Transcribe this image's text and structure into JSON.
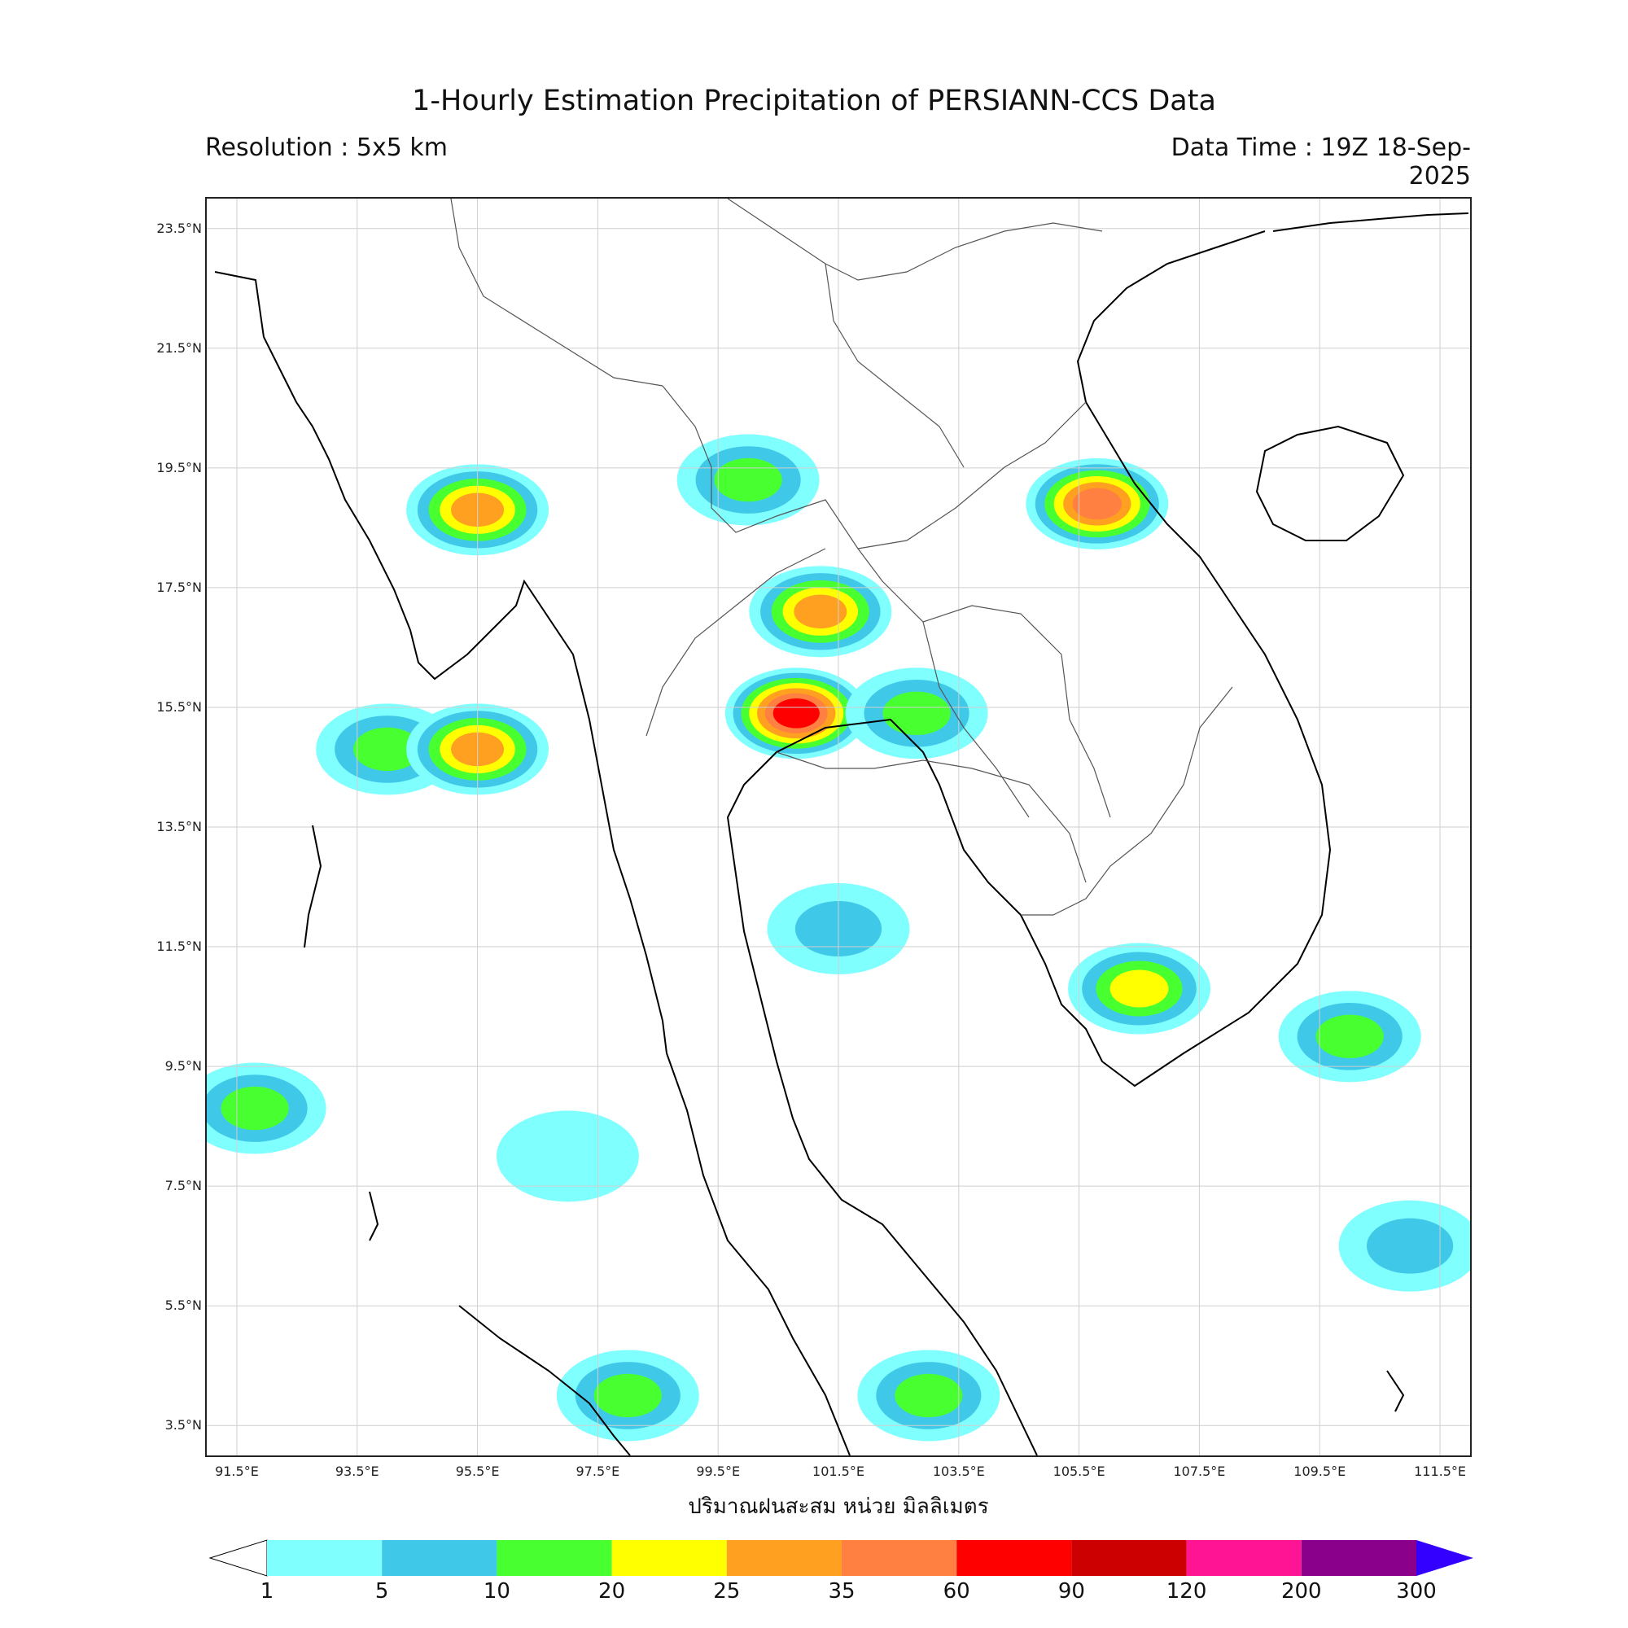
{
  "title": "1-Hourly Estimation Precipitation of PERSIANN-CCS Data",
  "resolution": "Resolution : 5x5 km",
  "data_time": "Data Time : 19Z 18-Sep-2025",
  "unit_label": "ปริมาณฝนสะสม หน่วย มิลลิเมตร",
  "lat_labels": [
    "23.5°N",
    "21.5°N",
    "19.5°N",
    "17.5°N",
    "15.5°N",
    "13.5°N",
    "11.5°N",
    "9.5°N",
    "7.5°N",
    "5.5°N",
    "3.5°N"
  ],
  "lon_labels": [
    "91.5°E",
    "93.5°E",
    "95.5°E",
    "97.5°E",
    "99.5°E",
    "101.5°E",
    "103.5°E",
    "105.5°E",
    "107.5°E",
    "109.5°E",
    "111.5°E"
  ],
  "colorbar": {
    "ticks": [
      "1",
      "5",
      "10",
      "20",
      "25",
      "35",
      "60",
      "90",
      "120",
      "200",
      "300"
    ],
    "colors": [
      "#80ffff",
      "#40c8e8",
      "#48ff30",
      "#ffff00",
      "#ffa020",
      "#ff8040",
      "#ff0000",
      "#cc0000",
      "#ff1493",
      "#8b008b"
    ],
    "over_color": "#3300ff"
  },
  "chart_data": {
    "type": "heatmap",
    "title": "1-Hourly Estimation Precipitation of PERSIANN-CCS Data",
    "xlabel": "",
    "ylabel": "",
    "xlim": [
      91.0,
      112.0
    ],
    "ylim": [
      3.0,
      24.0
    ],
    "levels_mm": [
      1,
      5,
      10,
      20,
      25,
      35,
      60,
      90,
      120,
      200,
      300
    ],
    "rain_cells": [
      {
        "lon": 95.5,
        "lat": 18.8,
        "peak_mm": 25
      },
      {
        "lon": 94.0,
        "lat": 14.8,
        "peak_mm": 10
      },
      {
        "lon": 95.5,
        "lat": 14.8,
        "peak_mm": 25
      },
      {
        "lon": 100.8,
        "lat": 15.4,
        "peak_mm": 60
      },
      {
        "lon": 100.0,
        "lat": 19.3,
        "peak_mm": 10
      },
      {
        "lon": 101.2,
        "lat": 17.1,
        "peak_mm": 25
      },
      {
        "lon": 102.8,
        "lat": 15.4,
        "peak_mm": 10
      },
      {
        "lon": 105.8,
        "lat": 18.9,
        "peak_mm": 35
      },
      {
        "lon": 101.5,
        "lat": 11.8,
        "peak_mm": 5
      },
      {
        "lon": 110.0,
        "lat": 10.0,
        "peak_mm": 10
      },
      {
        "lon": 106.5,
        "lat": 10.8,
        "peak_mm": 20
      },
      {
        "lon": 98.0,
        "lat": 4.0,
        "peak_mm": 10
      },
      {
        "lon": 103.0,
        "lat": 4.0,
        "peak_mm": 10
      },
      {
        "lon": 91.8,
        "lat": 8.8,
        "peak_mm": 10
      },
      {
        "lon": 97.0,
        "lat": 8.0,
        "peak_mm": 1
      },
      {
        "lon": 111.0,
        "lat": 6.5,
        "peak_mm": 5
      }
    ]
  }
}
